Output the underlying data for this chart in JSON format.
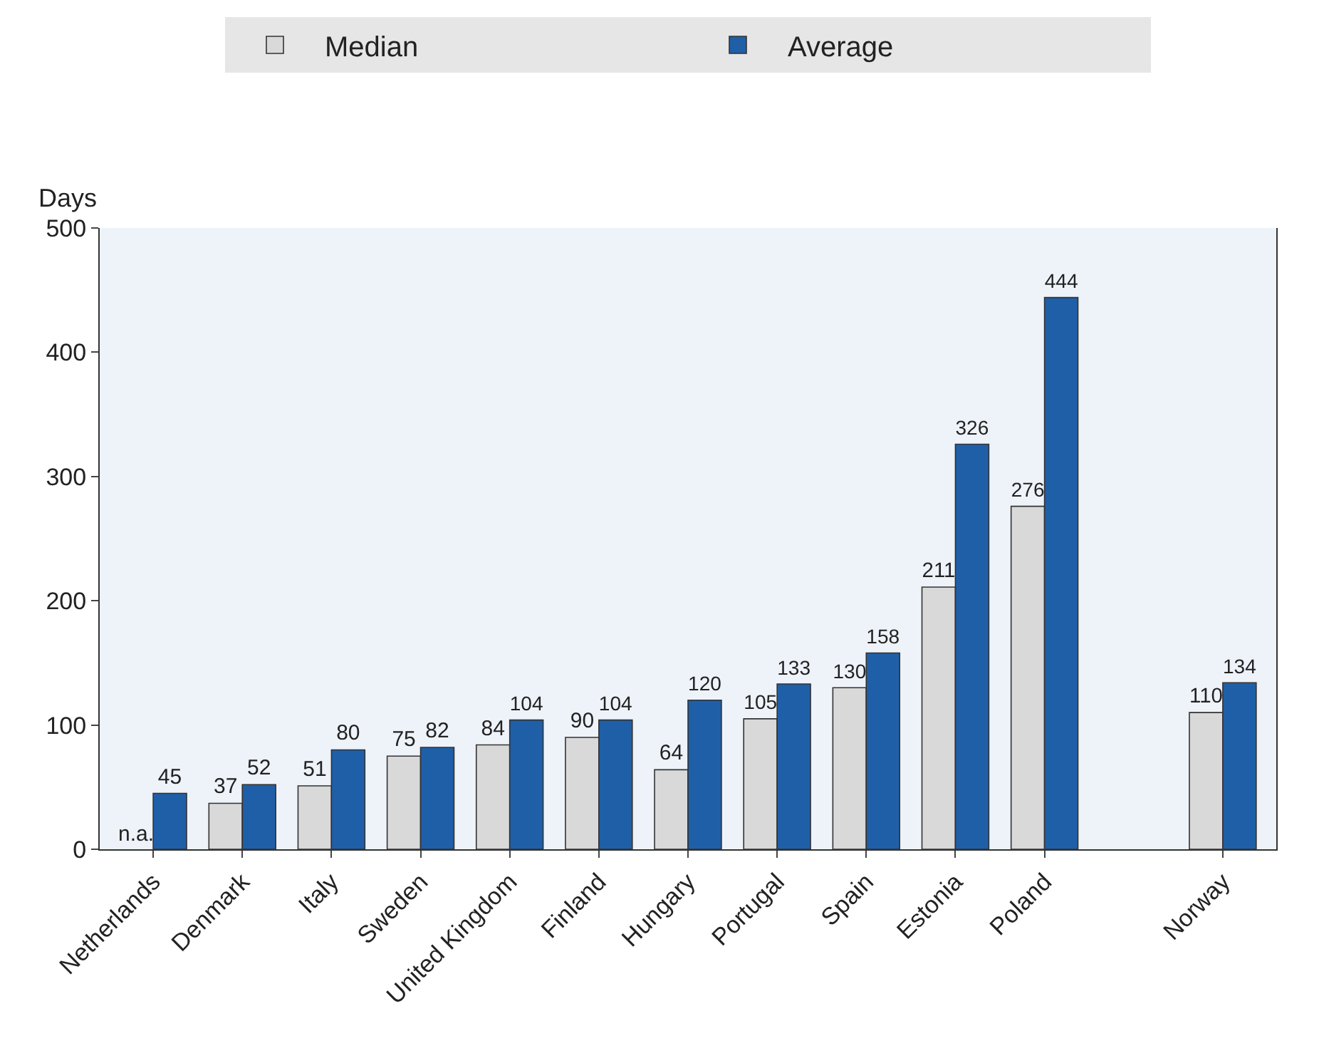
{
  "chart_data": {
    "type": "bar",
    "ylabel": "Days",
    "categories": [
      "Netherlands",
      "Denmark",
      "Italy",
      "Sweden",
      "United Kingdom",
      "Finland",
      "Hungary",
      "Portugal",
      "Spain",
      "Estonia",
      "Poland",
      null,
      "Norway"
    ],
    "series": [
      {
        "name": "Median",
        "color": "#d9d9d9",
        "values": [
          null,
          37,
          51,
          75,
          84,
          90,
          64,
          105,
          130,
          211,
          276,
          null,
          110
        ],
        "value_labels": [
          "n.a.",
          "37",
          "51",
          "75",
          "84",
          "90",
          "64",
          "105",
          "130",
          "211",
          "276",
          null,
          "110"
        ]
      },
      {
        "name": "Average",
        "color": "#1f5fa8",
        "values": [
          45,
          52,
          80,
          82,
          104,
          104,
          120,
          133,
          158,
          326,
          444,
          null,
          134
        ],
        "value_labels": [
          "45",
          "52",
          "80",
          "82",
          "104",
          "104",
          "120",
          "133",
          "158",
          "326",
          "444",
          null,
          "134"
        ]
      }
    ],
    "ylim": [
      0,
      500
    ],
    "yticks": [
      0,
      100,
      200,
      300,
      400,
      500
    ],
    "grid": false,
    "legend": "top"
  }
}
